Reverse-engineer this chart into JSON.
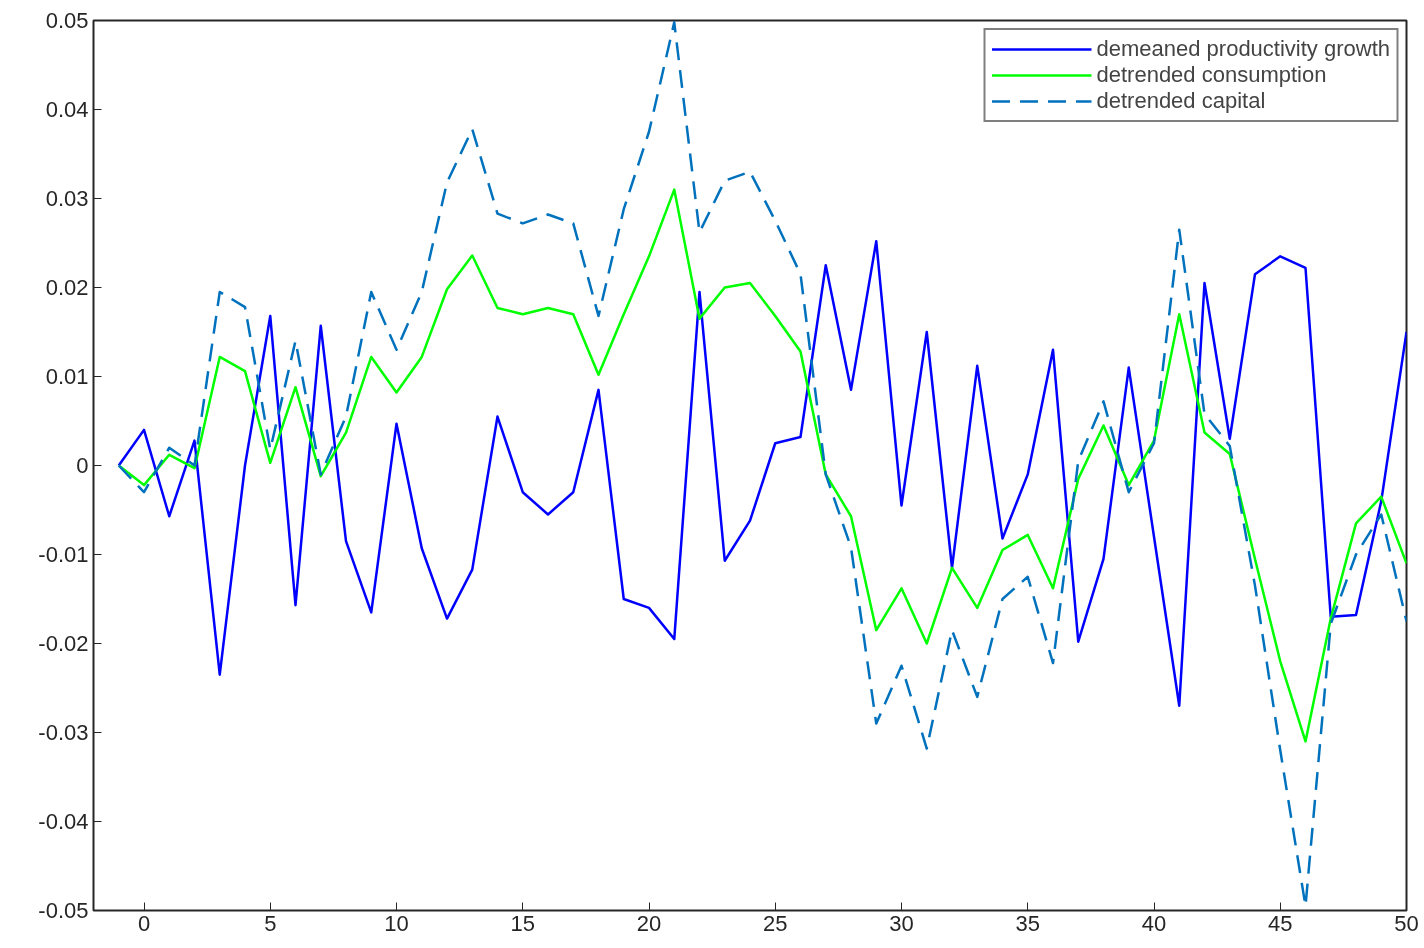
{
  "chart_data": {
    "type": "line",
    "x": [
      -1,
      0,
      1,
      2,
      3,
      4,
      5,
      6,
      7,
      8,
      9,
      10,
      11,
      12,
      13,
      14,
      15,
      16,
      17,
      18,
      19,
      20,
      21,
      22,
      23,
      24,
      25,
      26,
      27,
      28,
      29,
      30,
      31,
      32,
      33,
      34,
      35,
      36,
      37,
      38,
      39,
      40,
      41,
      42,
      43,
      44,
      45,
      46,
      47,
      48,
      49,
      50
    ],
    "xlim": [
      -2,
      50
    ],
    "xticks": [
      0,
      5,
      10,
      15,
      20,
      25,
      30,
      35,
      40,
      45,
      50
    ],
    "ylim": [
      -0.05,
      0.05
    ],
    "yticks": [
      -0.05,
      -0.04,
      -0.03,
      -0.02,
      -0.01,
      0,
      0.01,
      0.02,
      0.03,
      0.04,
      0.05
    ],
    "grid": false,
    "legend": "top right",
    "series": [
      {
        "name": "demeaned productivity growth",
        "color": "#0000ff",
        "line_style": "solid",
        "values": [
          0,
          0.004,
          -0.0057,
          0.0028,
          -0.0235,
          0,
          0.0168,
          -0.0157,
          0.0157,
          -0.0085,
          -0.0165,
          0.0047,
          -0.0093,
          -0.0172,
          -0.0117,
          0.0055,
          -0.003,
          -0.0055,
          -0.003,
          0.0085,
          -0.015,
          -0.016,
          -0.0195,
          0.0195,
          -0.0107,
          -0.0062,
          0.0025,
          0.0032,
          0.0225,
          0.0085,
          0.0252,
          -0.0045,
          0.015,
          -0.0115,
          0.0112,
          -0.0082,
          -0.001,
          0.013,
          -0.0198,
          -0.0105,
          0.011,
          -0.008,
          -0.027,
          0.0205,
          0.003,
          0.0215,
          0.0235,
          0.0222,
          -0.017,
          -0.0168,
          -0.004,
          0.015
        ]
      },
      {
        "name": "detrended consumption",
        "color": "#00ff00",
        "line_style": "solid",
        "values": [
          0,
          -0.0022,
          0.0012,
          -0.0003,
          0.0122,
          0.0106,
          0.0003,
          0.0088,
          -0.0012,
          0.0037,
          0.0122,
          0.0082,
          0.0122,
          0.0198,
          0.0236,
          0.0177,
          0.017,
          0.0177,
          0.017,
          0.0102,
          0.017,
          0.0235,
          0.031,
          0.0165,
          0.02,
          0.0205,
          0.0168,
          0.0128,
          -0.001,
          -0.0057,
          -0.0185,
          -0.0138,
          -0.02,
          -0.0115,
          -0.016,
          -0.0095,
          -0.0078,
          -0.0138,
          -0.0015,
          0.0045,
          -0.0022,
          0.0028,
          0.017,
          0.0037,
          0.0013,
          -0.0105,
          -0.022,
          -0.031,
          -0.0172,
          -0.0065,
          -0.0035,
          -0.011
        ]
      },
      {
        "name": "detrended capital",
        "color": "#0072bd",
        "line_style": "dashed",
        "values": [
          0,
          -0.003,
          0.002,
          0,
          0.0195,
          0.0178,
          0.0018,
          0.014,
          -0.001,
          0.0055,
          0.0195,
          0.013,
          0.0195,
          0.0318,
          0.0378,
          0.0283,
          0.0272,
          0.0282,
          0.0272,
          0.0168,
          0.0288,
          0.0375,
          0.0498,
          0.0262,
          0.032,
          0.033,
          0.0275,
          0.0215,
          -0.001,
          -0.0092,
          -0.029,
          -0.0225,
          -0.0318,
          -0.0185,
          -0.026,
          -0.015,
          -0.0125,
          -0.0222,
          0.0005,
          0.0072,
          -0.003,
          0.0025,
          0.0265,
          0.0058,
          0.0022,
          -0.0135,
          -0.032,
          -0.0495,
          -0.0178,
          -0.01,
          -0.0055,
          -0.0175
        ]
      }
    ]
  }
}
